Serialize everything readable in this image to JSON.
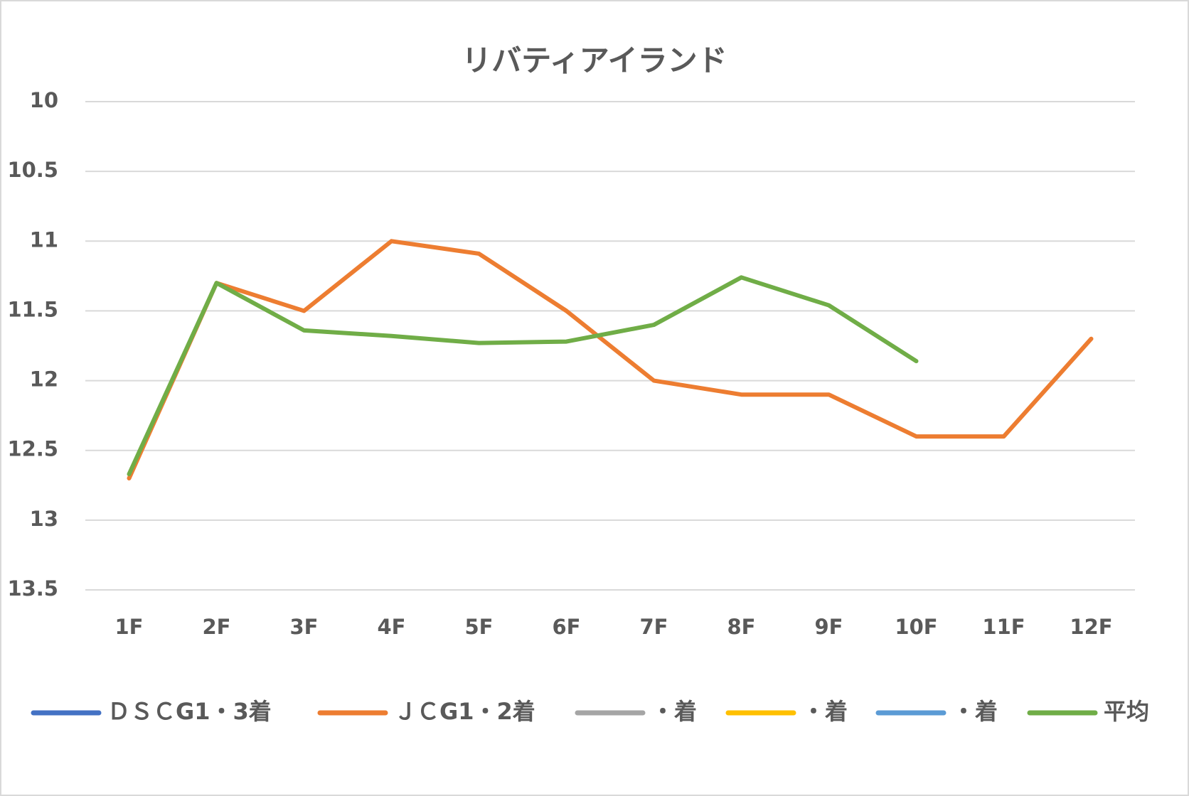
{
  "chart_data": {
    "type": "line",
    "title": "リバティアイランド",
    "categories": [
      "1F",
      "2F",
      "3F",
      "4F",
      "5F",
      "6F",
      "7F",
      "8F",
      "9F",
      "10F",
      "11F",
      "12F"
    ],
    "series": [
      {
        "name": "ＤＳＣG1・3着",
        "color": "#4472c4",
        "values": [
          null,
          null,
          null,
          null,
          null,
          null,
          null,
          null,
          null,
          null,
          null,
          null
        ]
      },
      {
        "name": "ＪＣG1・2着",
        "color": "#ed7d31",
        "values": [
          12.7,
          11.3,
          11.5,
          11.0,
          11.09,
          11.5,
          12.0,
          12.1,
          12.1,
          12.4,
          12.4,
          11.7
        ]
      },
      {
        "name": "・着",
        "color": "#a5a5a5",
        "values": [
          null,
          null,
          null,
          null,
          null,
          null,
          null,
          null,
          null,
          null,
          null,
          null
        ]
      },
      {
        "name": "・着",
        "color": "#ffc000",
        "values": [
          null,
          null,
          null,
          null,
          null,
          null,
          null,
          null,
          null,
          null,
          null,
          null
        ]
      },
      {
        "name": "・着",
        "color": "#5b9bd5",
        "values": [
          null,
          null,
          null,
          null,
          null,
          null,
          null,
          null,
          null,
          null,
          null,
          null
        ]
      },
      {
        "name": "平均",
        "color": "#70ad47",
        "values": [
          12.67,
          11.3,
          11.64,
          11.68,
          11.73,
          11.72,
          11.6,
          11.26,
          11.46,
          11.86,
          null,
          null
        ]
      }
    ],
    "ylim": [
      10,
      13.5
    ],
    "yticks": [
      10,
      10.5,
      11,
      11.5,
      12,
      12.5,
      13,
      13.5
    ],
    "y_inverted": true,
    "grid": true,
    "legend": "bottom"
  }
}
